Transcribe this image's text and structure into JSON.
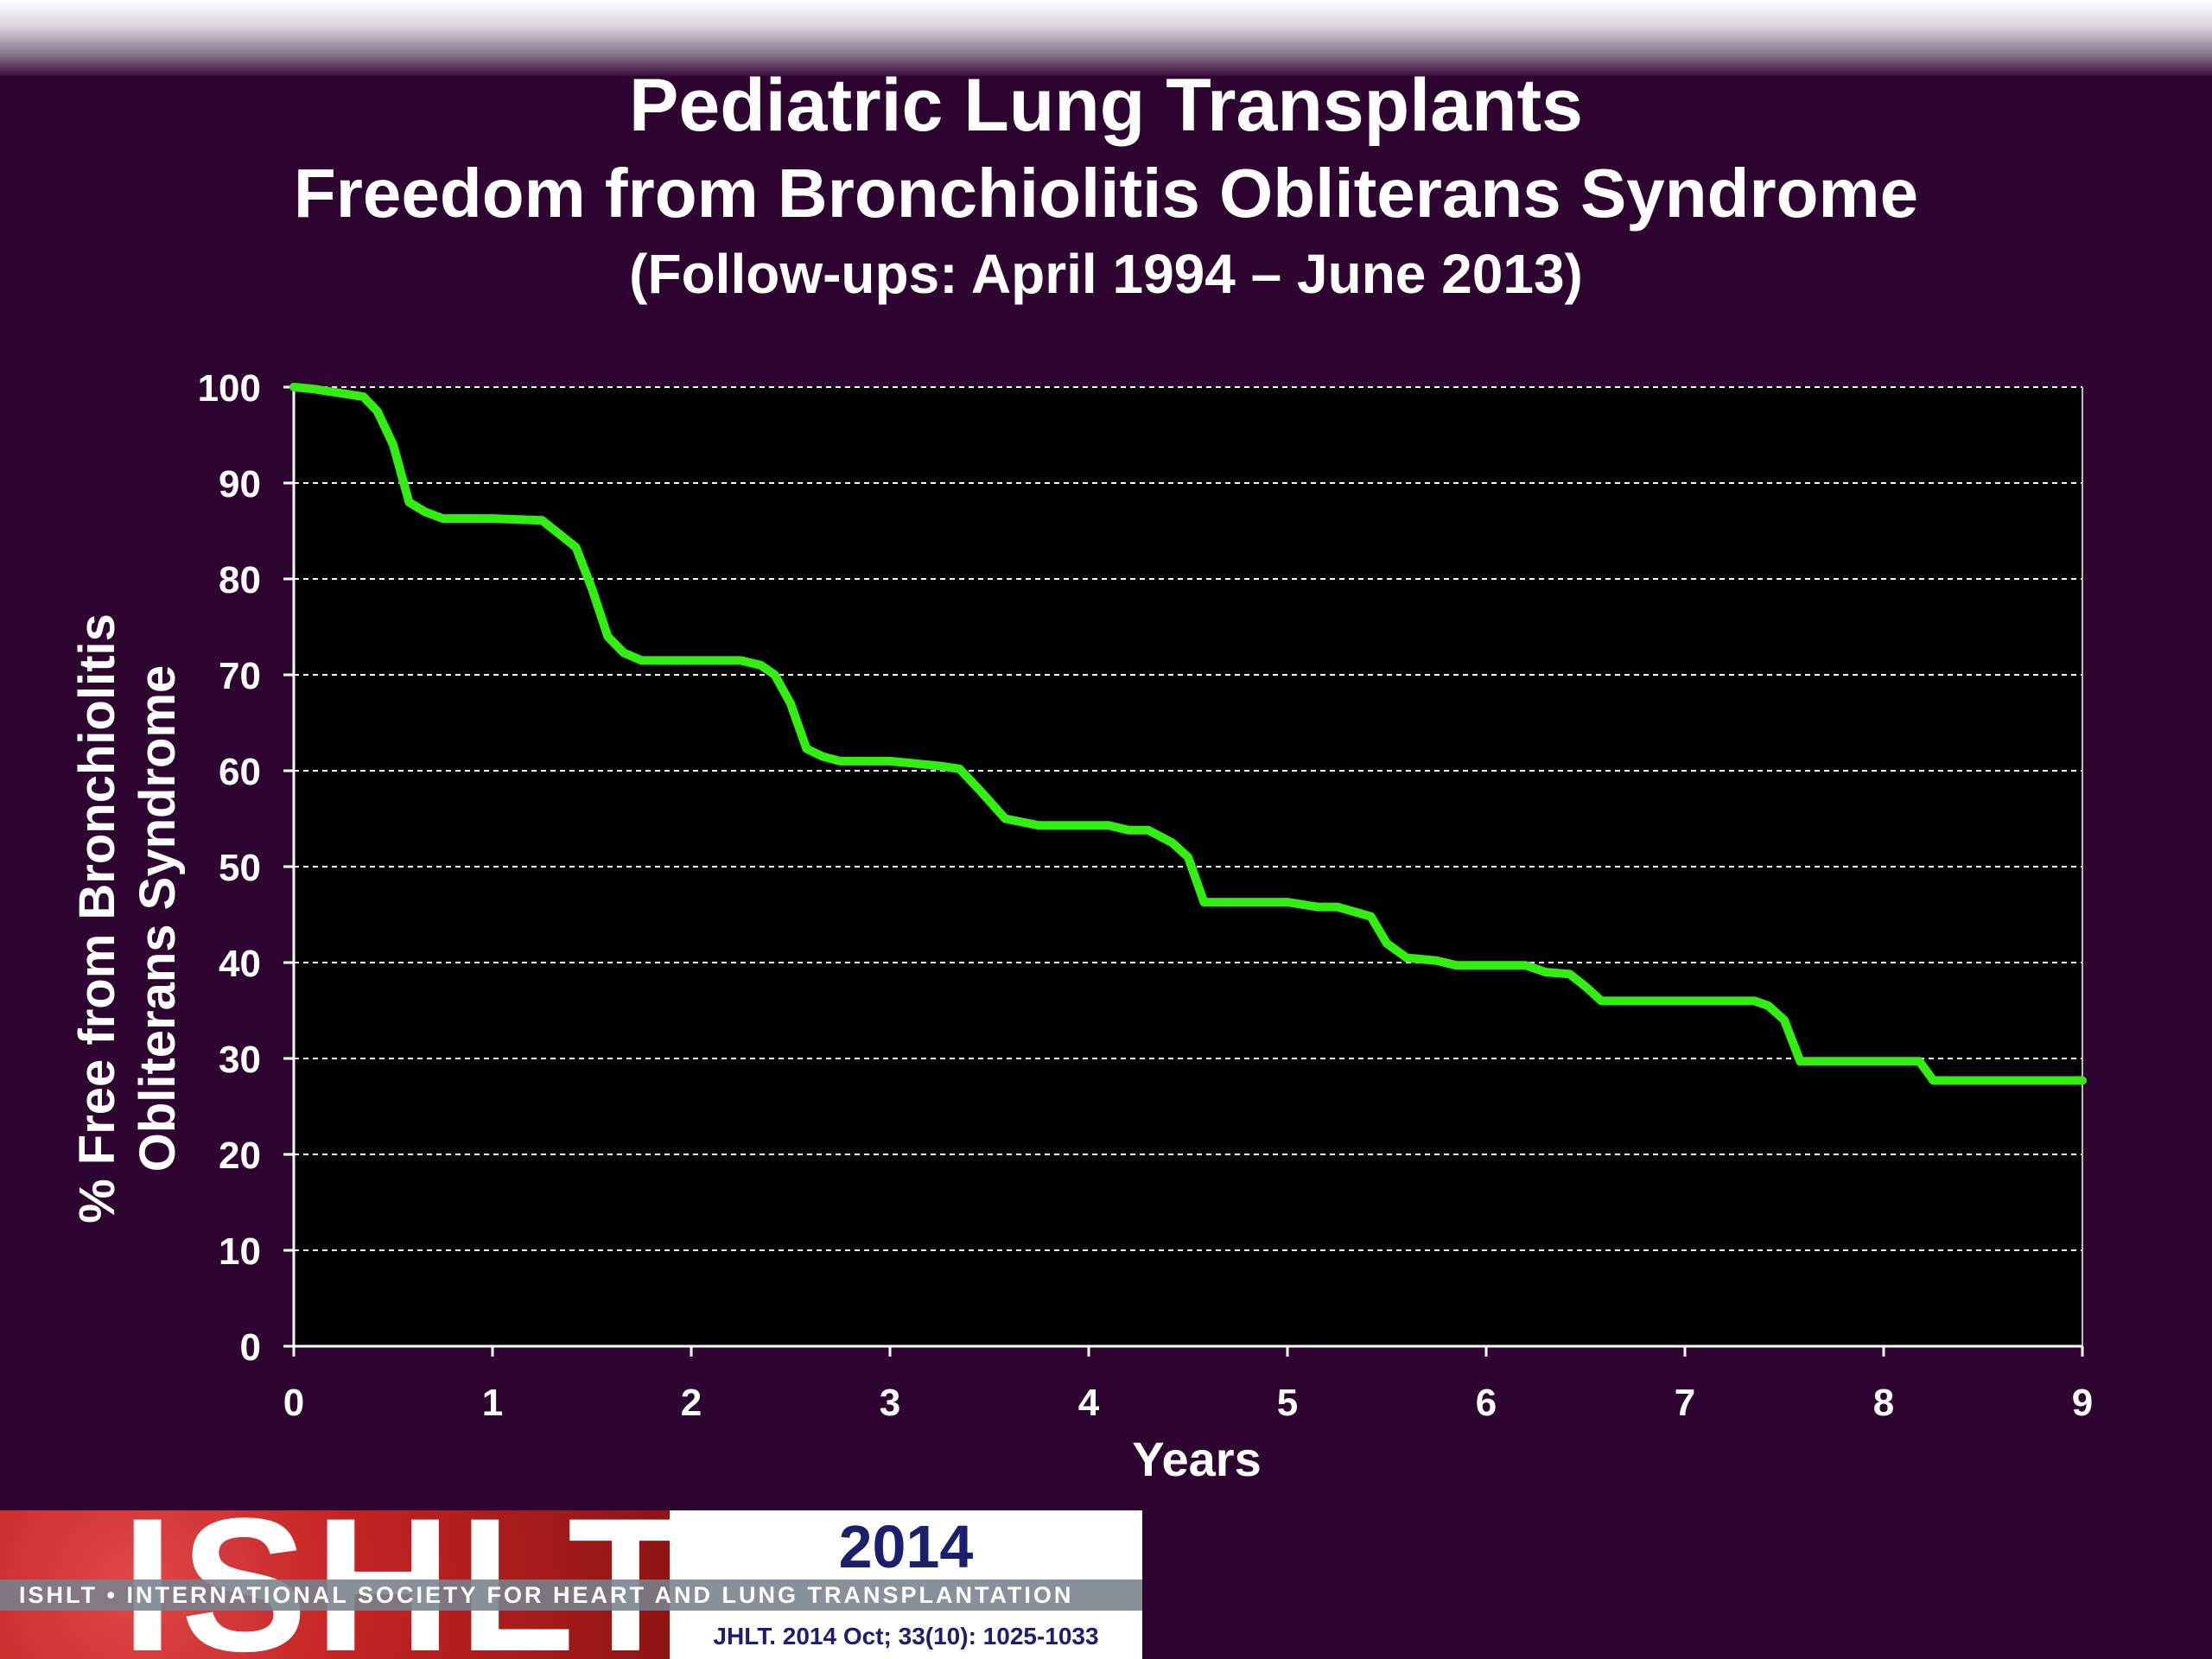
{
  "slide": {
    "title": "Pediatric Lung Transplants",
    "subtitle": "Freedom from Bronchiolitis Obliterans Syndrome",
    "period": "(Follow-ups: April 1994 – June 2013)"
  },
  "banner": {
    "logo_text": "ISHLT",
    "year": "2014",
    "society": "ISHLT • INTERNATIONAL SOCIETY FOR HEART AND LUNG TRANSPLANTATION",
    "citation": "JHLT. 2014 Oct; 33(10): 1025-1033"
  },
  "colors": {
    "background": "#2e0430",
    "plot_background": "#000000",
    "series": "#33ee11",
    "banner_red": "#c42424",
    "banner_text": "#1c1f6e"
  },
  "chart_data": {
    "type": "line",
    "title": "Freedom from Bronchiolitis Obliterans Syndrome",
    "xlabel": "Years",
    "ylabel": "% Free from Bronchiolitis Obliterans Syndrome",
    "ylabel_lines": [
      "% Free from Bronchiolitis",
      "Obliterans Syndrome"
    ],
    "xlim": [
      0,
      9
    ],
    "ylim": [
      0,
      100
    ],
    "xticks": [
      0,
      1,
      2,
      3,
      4,
      5,
      6,
      7,
      8,
      9
    ],
    "yticks": [
      0,
      10,
      20,
      30,
      40,
      50,
      60,
      70,
      80,
      90,
      100
    ],
    "grid": "horizontal dashed",
    "series": [
      {
        "x": [
          0,
          0.1,
          0.35,
          0.42,
          0.5,
          0.58,
          0.66,
          0.75,
          1.0,
          1.25,
          1.42,
          1.5,
          1.58,
          1.66,
          1.75,
          2.0,
          2.25,
          2.35,
          2.42,
          2.5,
          2.58,
          2.66,
          2.75,
          3.0,
          3.15,
          3.25,
          3.35,
          3.45,
          3.58,
          3.75,
          4.1,
          4.2,
          4.3,
          4.42,
          4.5,
          4.58,
          5.0,
          5.15,
          5.25,
          5.42,
          5.5,
          5.6,
          5.75,
          5.85,
          6.2,
          6.3,
          6.42,
          6.5,
          6.58,
          7.0,
          7.35,
          7.42,
          7.5,
          7.58,
          8.0,
          8.18,
          8.25,
          9.0
        ],
        "y": [
          100,
          99.8,
          99,
          97.5,
          94,
          88,
          87,
          86.3,
          86.3,
          86.1,
          83.3,
          79,
          74,
          72.3,
          71.5,
          71.5,
          71.5,
          71,
          70,
          67,
          62.3,
          61.5,
          61,
          61,
          60.7,
          60.5,
          60.2,
          58,
          55,
          54.3,
          54.3,
          53.8,
          53.8,
          52.5,
          51,
          46.3,
          46.3,
          45.8,
          45.8,
          44.8,
          42,
          40.5,
          40.2,
          39.7,
          39.7,
          39,
          38.8,
          37.5,
          36,
          36,
          36,
          35.5,
          34,
          29.7,
          29.7,
          29.7,
          27.7,
          27.7
        ]
      }
    ]
  }
}
